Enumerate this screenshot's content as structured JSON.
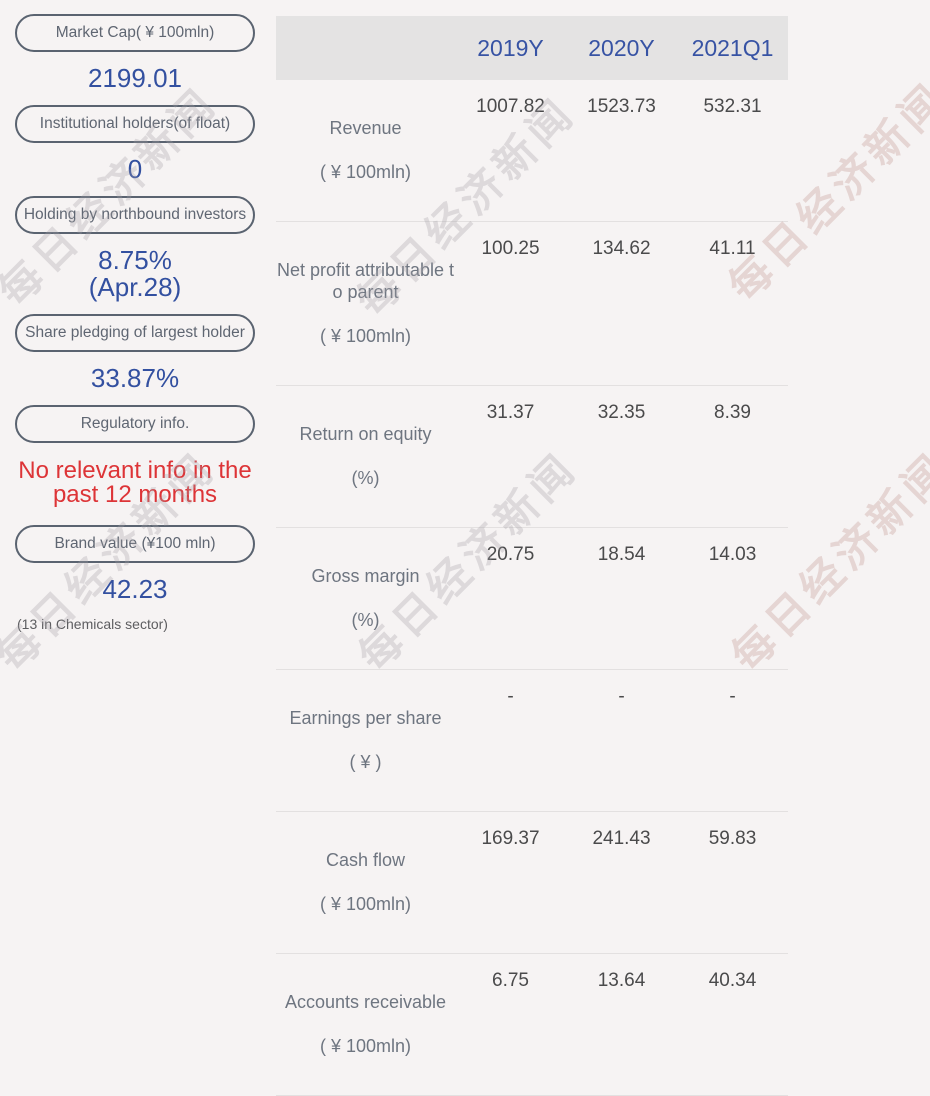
{
  "colors": {
    "page_background": "#f6f3f3",
    "accent_blue": "#3350a0",
    "header_blue": "#3753a4",
    "alert_red": "#dd3437",
    "chip_border_gray": "#5a6370",
    "table_header_bg": "#e4e3e3"
  },
  "watermark": {
    "text": "每日经济新闻"
  },
  "left_panel": {
    "items": [
      {
        "label": "Market Cap( ¥ 100mln)",
        "value": "2199.01"
      },
      {
        "label": "Institutional holders(of float)",
        "value": "0"
      },
      {
        "label": "Holding by northbound investors",
        "value": "8.75%\n(Apr.28)"
      },
      {
        "label": "Share pledging of largest holder",
        "value": "33.87%"
      },
      {
        "label": "Regulatory info.",
        "value": "No relevant info in the past 12 months"
      },
      {
        "label": "Brand value (¥100 mln)",
        "value": "42.23",
        "footnote": "(13 in Chemicals sector)"
      }
    ]
  },
  "table": {
    "columns": [
      "2019Y",
      "2020Y",
      "2021Q1"
    ],
    "rows": [
      {
        "label": "Revenue",
        "sub": "( ¥ 100mln)",
        "values": [
          "1007.82",
          "1523.73",
          "532.31"
        ]
      },
      {
        "label": "Net profit attributable t\no parent",
        "sub": "( ¥ 100mln)",
        "values": [
          "100.25",
          "134.62",
          "41.11"
        ]
      },
      {
        "label": "Return on equity",
        "sub": "(%)",
        "values": [
          "31.37",
          "32.35",
          "8.39"
        ]
      },
      {
        "label": "Gross margin",
        "sub": "(%)",
        "values": [
          "20.75",
          "18.54",
          "14.03"
        ]
      },
      {
        "label": "Earnings per share",
        "sub": "( ¥ )",
        "values": [
          "-",
          "-",
          "-"
        ]
      },
      {
        "label": "Cash flow",
        "sub": "( ¥ 100mln)",
        "values": [
          "169.37",
          "241.43",
          "59.83"
        ]
      },
      {
        "label": "Accounts receivable",
        "sub": "( ¥ 100mln)",
        "values": [
          "6.75",
          "13.64",
          "40.34"
        ]
      }
    ]
  }
}
